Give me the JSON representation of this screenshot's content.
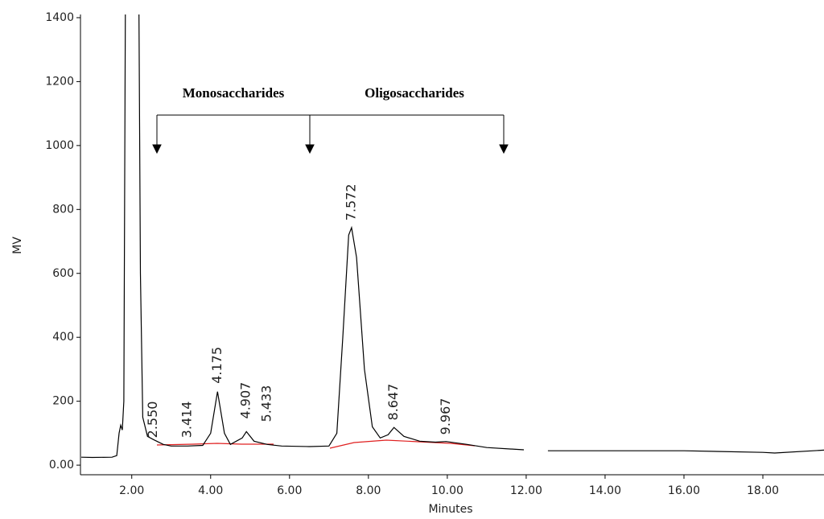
{
  "chart_data": {
    "type": "line",
    "x_label": "Minutes",
    "y_label": "MV",
    "x": [
      0.72,
      1.0,
      1.5,
      1.62,
      1.68,
      1.72,
      1.76,
      1.8,
      1.84,
      2.18,
      2.22,
      2.28,
      2.4,
      2.55,
      2.8,
      3.0,
      3.414,
      3.8,
      4.0,
      4.175,
      4.35,
      4.5,
      4.8,
      4.907,
      5.1,
      5.433,
      5.8,
      6.5,
      7.0,
      7.2,
      7.35,
      7.5,
      7.572,
      7.7,
      7.9,
      8.1,
      8.3,
      8.5,
      8.647,
      8.9,
      9.3,
      9.7,
      9.967,
      10.5,
      11.0,
      11.94,
      12.25,
      12.55,
      14,
      16,
      18,
      18.3,
      19.55
    ],
    "series": [
      {
        "color": "#000000",
        "values": [
          25,
          24,
          25,
          30,
          100,
          125,
          110,
          200,
          1500,
          1500,
          600,
          150,
          90,
          80,
          65,
          60,
          60,
          62,
          100,
          230,
          100,
          65,
          85,
          105,
          75,
          65,
          60,
          58,
          60,
          100,
          400,
          720,
          743,
          650,
          300,
          120,
          85,
          95,
          118,
          90,
          75,
          72,
          74,
          65,
          55,
          48,
          null,
          45,
          45,
          45,
          40,
          38,
          47
        ]
      }
    ],
    "peaks": [
      {
        "x": 2.55,
        "y": 85,
        "text": "2.550"
      },
      {
        "x": 3.414,
        "y": 85,
        "text": "3.414"
      },
      {
        "x": 4.175,
        "y": 255,
        "text": "4.175"
      },
      {
        "x": 4.907,
        "y": 145,
        "text": "4.907"
      },
      {
        "x": 5.433,
        "y": 135,
        "text": "5.433"
      },
      {
        "x": 7.572,
        "y": 765,
        "text": "7.572"
      },
      {
        "x": 8.647,
        "y": 140,
        "text": "8.647"
      },
      {
        "x": 9.967,
        "y": 95,
        "text": "9.967"
      }
    ],
    "annotations": [
      "Monosaccharides",
      "Oligosaccharides"
    ],
    "xlim": [
      0.7,
      19.55
    ],
    "ylim": [
      -30,
      1410
    ],
    "xticks": [
      {
        "value": 2,
        "label": "2.00"
      },
      {
        "value": 4,
        "label": "4.00"
      },
      {
        "value": 6,
        "label": "6.00"
      },
      {
        "value": 8,
        "label": "8.00"
      },
      {
        "value": 10,
        "label": "10.00"
      },
      {
        "value": 12,
        "label": "12.00"
      },
      {
        "value": 14,
        "label": "14.00"
      },
      {
        "value": 16,
        "label": "16.00"
      },
      {
        "value": 18,
        "label": "18.00"
      }
    ],
    "yticks": [
      {
        "value": 0,
        "label": "0.00"
      },
      200,
      400,
      600,
      800,
      1000,
      1200,
      1400
    ]
  }
}
